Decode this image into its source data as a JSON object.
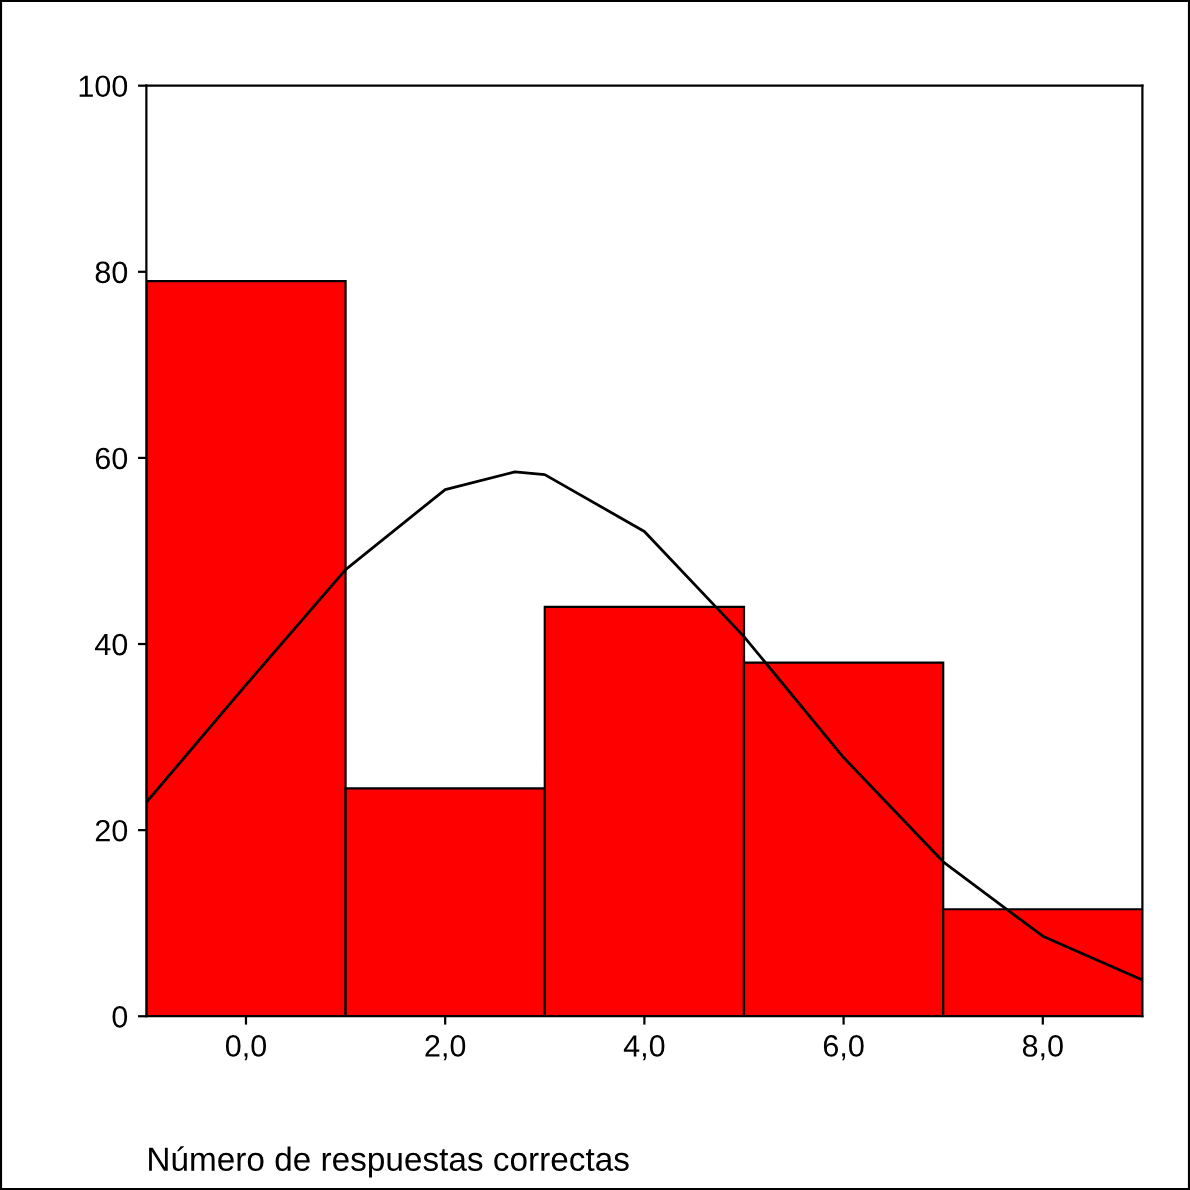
{
  "chart_data": [
    {
      "type": "histogram",
      "xlabel": "Número de respuestas correctas",
      "bins": [
        -1,
        1,
        3,
        5,
        7,
        9
      ],
      "values": [
        79,
        24.5,
        44,
        38,
        11.5
      ],
      "color": "#ff0000",
      "xlim": [
        -1,
        9
      ],
      "ylim": [
        0,
        100
      ],
      "xticks": [
        {
          "value": 0,
          "label": "0,0"
        },
        {
          "value": 2,
          "label": "2,0"
        },
        {
          "value": 4,
          "label": "4,0"
        },
        {
          "value": 6,
          "label": "6,0"
        },
        {
          "value": 8,
          "label": "8,0"
        }
      ],
      "yticks": [
        0,
        20,
        40,
        60,
        80,
        100
      ],
      "grid": false,
      "legend": false,
      "series": [
        {
          "type": "line",
          "color": "#000000",
          "x": [
            -1,
            0,
            1,
            2,
            2.7,
            3,
            4,
            5,
            6,
            7,
            8,
            9
          ],
          "values": [
            23,
            35.6,
            48,
            56.6,
            58.5,
            58.2,
            52.1,
            40.8,
            27.8,
            16.6,
            8.6,
            3.9
          ]
        }
      ]
    }
  ]
}
